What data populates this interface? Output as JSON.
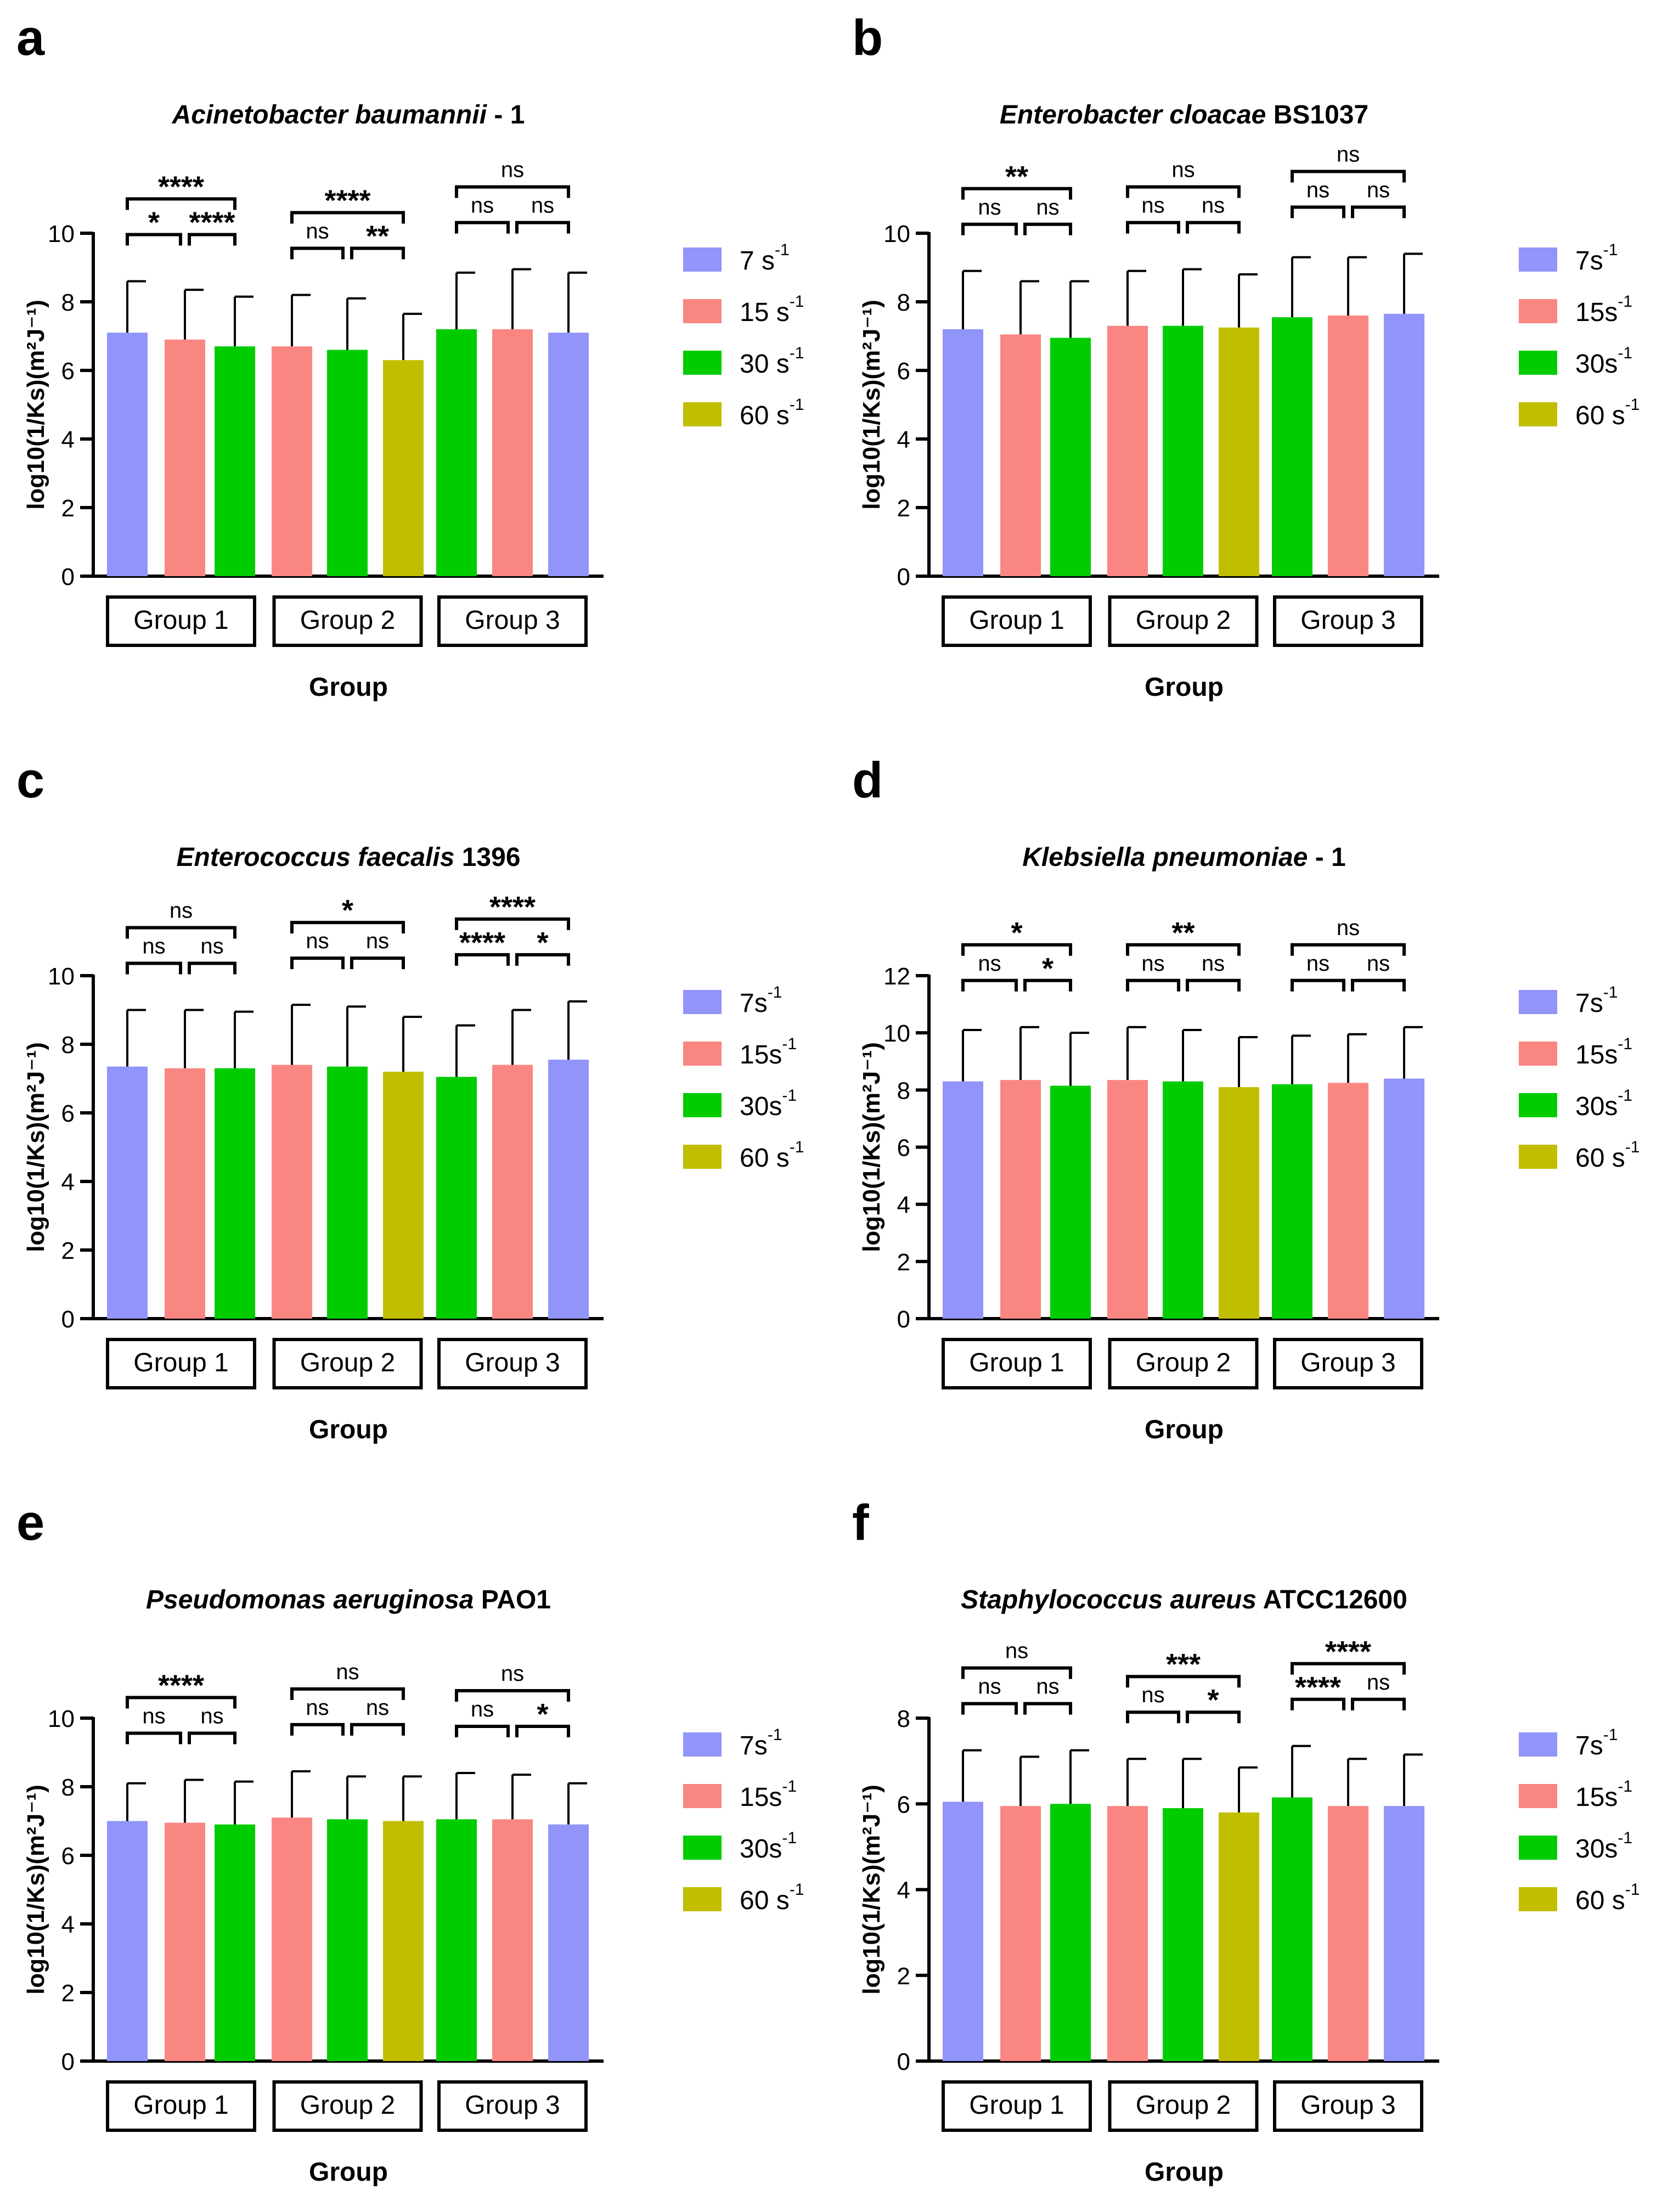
{
  "figure": {
    "x_axis_title": "Group"
  },
  "legend_colors": {
    "7": "#9194F8",
    "15": "#FA8682",
    "30": "#00CC00",
    "60": "#C1BE00"
  },
  "group_colors": [
    [
      "7",
      "15",
      "30"
    ],
    [
      "15",
      "30",
      "60"
    ],
    [
      "30",
      "15",
      "7"
    ]
  ],
  "chart_data": [
    {
      "type": "bar",
      "panel": "a",
      "title_italic": "Acinetobacter baumannii",
      "title_rest": " - 1",
      "ylabel": "log10(1/Ks)(m²J⁻¹)",
      "xlabel": "Group",
      "ylim": [
        0,
        10
      ],
      "yticks": [
        0,
        2,
        4,
        6,
        8,
        10
      ],
      "categories": [
        "Group 1",
        "Group 2",
        "Group 3"
      ],
      "legend": [
        "7 s⁻¹",
        "15 s⁻¹",
        "30 s⁻¹",
        "60 s⁻¹"
      ],
      "values": [
        [
          7.1,
          6.9,
          6.7
        ],
        [
          6.7,
          6.6,
          6.3
        ],
        [
          7.2,
          7.2,
          7.1
        ]
      ],
      "errors": [
        [
          8.6,
          8.35,
          8.15
        ],
        [
          8.2,
          8.1,
          7.65
        ],
        [
          8.85,
          8.95,
          8.85
        ]
      ],
      "significance": [
        {
          "g": 0,
          "pair": [
            0,
            2
          ],
          "level": 2,
          "label": "****"
        },
        {
          "g": 0,
          "pair": [
            0,
            1
          ],
          "level": 1,
          "label": "*"
        },
        {
          "g": 0,
          "pair": [
            1,
            2
          ],
          "level": 1,
          "label": "****"
        },
        {
          "g": 1,
          "pair": [
            0,
            2
          ],
          "level": 2,
          "label": "****"
        },
        {
          "g": 1,
          "pair": [
            0,
            1
          ],
          "level": 1,
          "label": "ns"
        },
        {
          "g": 1,
          "pair": [
            1,
            2
          ],
          "level": 1,
          "label": "**"
        },
        {
          "g": 2,
          "pair": [
            0,
            2
          ],
          "level": 2,
          "label": "ns"
        },
        {
          "g": 2,
          "pair": [
            0,
            1
          ],
          "level": 1,
          "label": "ns"
        },
        {
          "g": 2,
          "pair": [
            1,
            2
          ],
          "level": 1,
          "label": "ns"
        }
      ]
    },
    {
      "type": "bar",
      "panel": "b",
      "title_italic": "Enterobacter cloacae",
      "title_rest": " BS1037",
      "ylabel": "log10(1/Ks)(m²J⁻¹)",
      "xlabel": "Group",
      "ylim": [
        0,
        10
      ],
      "yticks": [
        0,
        2,
        4,
        6,
        8,
        10
      ],
      "categories": [
        "Group 1",
        "Group 2",
        "Group 3"
      ],
      "legend": [
        "7s⁻¹",
        "15s⁻¹",
        "30s⁻¹",
        "60 s⁻¹"
      ],
      "values": [
        [
          7.2,
          7.05,
          6.95
        ],
        [
          7.3,
          7.3,
          7.25
        ],
        [
          7.55,
          7.6,
          7.65
        ]
      ],
      "errors": [
        [
          8.9,
          8.6,
          8.6
        ],
        [
          8.9,
          8.95,
          8.8
        ],
        [
          9.3,
          9.3,
          9.4
        ]
      ],
      "significance": [
        {
          "g": 0,
          "pair": [
            0,
            2
          ],
          "level": 2,
          "label": "**"
        },
        {
          "g": 0,
          "pair": [
            0,
            1
          ],
          "level": 1,
          "label": "ns"
        },
        {
          "g": 0,
          "pair": [
            1,
            2
          ],
          "level": 1,
          "label": "ns"
        },
        {
          "g": 1,
          "pair": [
            0,
            2
          ],
          "level": 2,
          "label": "ns"
        },
        {
          "g": 1,
          "pair": [
            0,
            1
          ],
          "level": 1,
          "label": "ns"
        },
        {
          "g": 1,
          "pair": [
            1,
            2
          ],
          "level": 1,
          "label": "ns"
        },
        {
          "g": 2,
          "pair": [
            0,
            2
          ],
          "level": 2,
          "label": "ns"
        },
        {
          "g": 2,
          "pair": [
            0,
            1
          ],
          "level": 1,
          "label": "ns"
        },
        {
          "g": 2,
          "pair": [
            1,
            2
          ],
          "level": 1,
          "label": "ns"
        }
      ]
    },
    {
      "type": "bar",
      "panel": "c",
      "title_italic": "Enterococcus faecalis",
      "title_rest": " 1396",
      "ylabel": "log10(1/Ks)(m²J⁻¹)",
      "xlabel": "Group",
      "ylim": [
        0,
        10
      ],
      "yticks": [
        0,
        2,
        4,
        6,
        8,
        10
      ],
      "categories": [
        "Group 1",
        "Group 2",
        "Group 3"
      ],
      "legend": [
        "7s⁻¹",
        "15s⁻¹",
        "30s⁻¹",
        "60 s⁻¹"
      ],
      "values": [
        [
          7.35,
          7.3,
          7.3
        ],
        [
          7.4,
          7.35,
          7.2
        ],
        [
          7.05,
          7.4,
          7.55
        ]
      ],
      "errors": [
        [
          9.0,
          9.0,
          8.95
        ],
        [
          9.15,
          9.1,
          8.8
        ],
        [
          8.55,
          9.0,
          9.25
        ]
      ],
      "significance": [
        {
          "g": 0,
          "pair": [
            0,
            2
          ],
          "level": 2,
          "label": "ns"
        },
        {
          "g": 0,
          "pair": [
            0,
            1
          ],
          "level": 1,
          "label": "ns"
        },
        {
          "g": 0,
          "pair": [
            1,
            2
          ],
          "level": 1,
          "label": "ns"
        },
        {
          "g": 1,
          "pair": [
            0,
            2
          ],
          "level": 2,
          "label": "*"
        },
        {
          "g": 1,
          "pair": [
            0,
            1
          ],
          "level": 1,
          "label": "ns"
        },
        {
          "g": 1,
          "pair": [
            1,
            2
          ],
          "level": 1,
          "label": "ns"
        },
        {
          "g": 2,
          "pair": [
            0,
            2
          ],
          "level": 2,
          "label": "****"
        },
        {
          "g": 2,
          "pair": [
            0,
            1
          ],
          "level": 1,
          "label": "****"
        },
        {
          "g": 2,
          "pair": [
            1,
            2
          ],
          "level": 1,
          "label": "*"
        }
      ]
    },
    {
      "type": "bar",
      "panel": "d",
      "title_italic": "Klebsiella pneumoniae",
      "title_rest": " - 1",
      "ylabel": "log10(1/Ks)(m²J⁻¹)",
      "xlabel": "Group",
      "ylim": [
        0,
        12
      ],
      "yticks": [
        0,
        2,
        4,
        6,
        8,
        10,
        12
      ],
      "categories": [
        "Group 1",
        "Group 2",
        "Group 3"
      ],
      "legend": [
        "7s⁻¹",
        "15s⁻¹",
        "30s⁻¹",
        "60 s⁻¹"
      ],
      "values": [
        [
          8.3,
          8.35,
          8.15
        ],
        [
          8.35,
          8.3,
          8.1
        ],
        [
          8.2,
          8.25,
          8.4
        ]
      ],
      "errors": [
        [
          10.1,
          10.2,
          10.0
        ],
        [
          10.2,
          10.1,
          9.85
        ],
        [
          9.9,
          9.95,
          10.2
        ]
      ],
      "significance": [
        {
          "g": 0,
          "pair": [
            0,
            2
          ],
          "level": 2,
          "label": "*"
        },
        {
          "g": 0,
          "pair": [
            0,
            1
          ],
          "level": 1,
          "label": "ns"
        },
        {
          "g": 0,
          "pair": [
            1,
            2
          ],
          "level": 1,
          "label": "*"
        },
        {
          "g": 1,
          "pair": [
            0,
            2
          ],
          "level": 2,
          "label": "**"
        },
        {
          "g": 1,
          "pair": [
            0,
            1
          ],
          "level": 1,
          "label": "ns"
        },
        {
          "g": 1,
          "pair": [
            1,
            2
          ],
          "level": 1,
          "label": "ns"
        },
        {
          "g": 2,
          "pair": [
            0,
            2
          ],
          "level": 2,
          "label": "ns"
        },
        {
          "g": 2,
          "pair": [
            0,
            1
          ],
          "level": 1,
          "label": "ns"
        },
        {
          "g": 2,
          "pair": [
            1,
            2
          ],
          "level": 1,
          "label": "ns"
        }
      ]
    },
    {
      "type": "bar",
      "panel": "e",
      "title_italic": "Pseudomonas aeruginosa",
      "title_rest": " PAO1",
      "ylabel": "log10(1/Ks)(m²J⁻¹)",
      "xlabel": "Group",
      "ylim": [
        0,
        10
      ],
      "yticks": [
        0,
        2,
        4,
        6,
        8,
        10
      ],
      "categories": [
        "Group 1",
        "Group 2",
        "Group 3"
      ],
      "legend": [
        "7s⁻¹",
        "15s⁻¹",
        "30s⁻¹",
        "60 s⁻¹"
      ],
      "values": [
        [
          7.0,
          6.95,
          6.9
        ],
        [
          7.1,
          7.05,
          7.0
        ],
        [
          7.05,
          7.05,
          6.9
        ]
      ],
      "errors": [
        [
          8.1,
          8.2,
          8.15
        ],
        [
          8.45,
          8.3,
          8.3
        ],
        [
          8.4,
          8.35,
          8.1
        ]
      ],
      "significance": [
        {
          "g": 0,
          "pair": [
            0,
            2
          ],
          "level": 2,
          "label": "****"
        },
        {
          "g": 0,
          "pair": [
            0,
            1
          ],
          "level": 1,
          "label": "ns"
        },
        {
          "g": 0,
          "pair": [
            1,
            2
          ],
          "level": 1,
          "label": "ns"
        },
        {
          "g": 1,
          "pair": [
            0,
            2
          ],
          "level": 2,
          "label": "ns"
        },
        {
          "g": 1,
          "pair": [
            0,
            1
          ],
          "level": 1,
          "label": "ns"
        },
        {
          "g": 1,
          "pair": [
            1,
            2
          ],
          "level": 1,
          "label": "ns"
        },
        {
          "g": 2,
          "pair": [
            0,
            2
          ],
          "level": 2,
          "label": "ns"
        },
        {
          "g": 2,
          "pair": [
            0,
            1
          ],
          "level": 1,
          "label": "ns"
        },
        {
          "g": 2,
          "pair": [
            1,
            2
          ],
          "level": 1,
          "label": "*"
        }
      ]
    },
    {
      "type": "bar",
      "panel": "f",
      "title_italic": "Staphylococcus aureus",
      "title_rest": " ATCC12600",
      "ylabel": "log10(1/Ks)(m²J⁻¹)",
      "xlabel": "Group",
      "ylim": [
        0,
        8
      ],
      "yticks": [
        0,
        2,
        4,
        6,
        8
      ],
      "categories": [
        "Group 1",
        "Group 2",
        "Group 3"
      ],
      "legend": [
        "7s⁻¹",
        "15s⁻¹",
        "30s⁻¹",
        "60 s⁻¹"
      ],
      "values": [
        [
          6.05,
          5.95,
          6.0
        ],
        [
          5.95,
          5.9,
          5.8
        ],
        [
          6.15,
          5.95,
          5.95
        ]
      ],
      "errors": [
        [
          7.25,
          7.1,
          7.25
        ],
        [
          7.05,
          7.05,
          6.85
        ],
        [
          7.35,
          7.05,
          7.15
        ]
      ],
      "significance": [
        {
          "g": 0,
          "pair": [
            0,
            2
          ],
          "level": 2,
          "label": "ns"
        },
        {
          "g": 0,
          "pair": [
            0,
            1
          ],
          "level": 1,
          "label": "ns"
        },
        {
          "g": 0,
          "pair": [
            1,
            2
          ],
          "level": 1,
          "label": "ns"
        },
        {
          "g": 1,
          "pair": [
            0,
            2
          ],
          "level": 2,
          "label": "***"
        },
        {
          "g": 1,
          "pair": [
            0,
            1
          ],
          "level": 1,
          "label": "ns"
        },
        {
          "g": 1,
          "pair": [
            1,
            2
          ],
          "level": 1,
          "label": "*"
        },
        {
          "g": 2,
          "pair": [
            0,
            2
          ],
          "level": 2,
          "label": "****"
        },
        {
          "g": 2,
          "pair": [
            0,
            1
          ],
          "level": 1,
          "label": "****"
        },
        {
          "g": 2,
          "pair": [
            1,
            2
          ],
          "level": 1,
          "label": "ns"
        }
      ]
    }
  ]
}
